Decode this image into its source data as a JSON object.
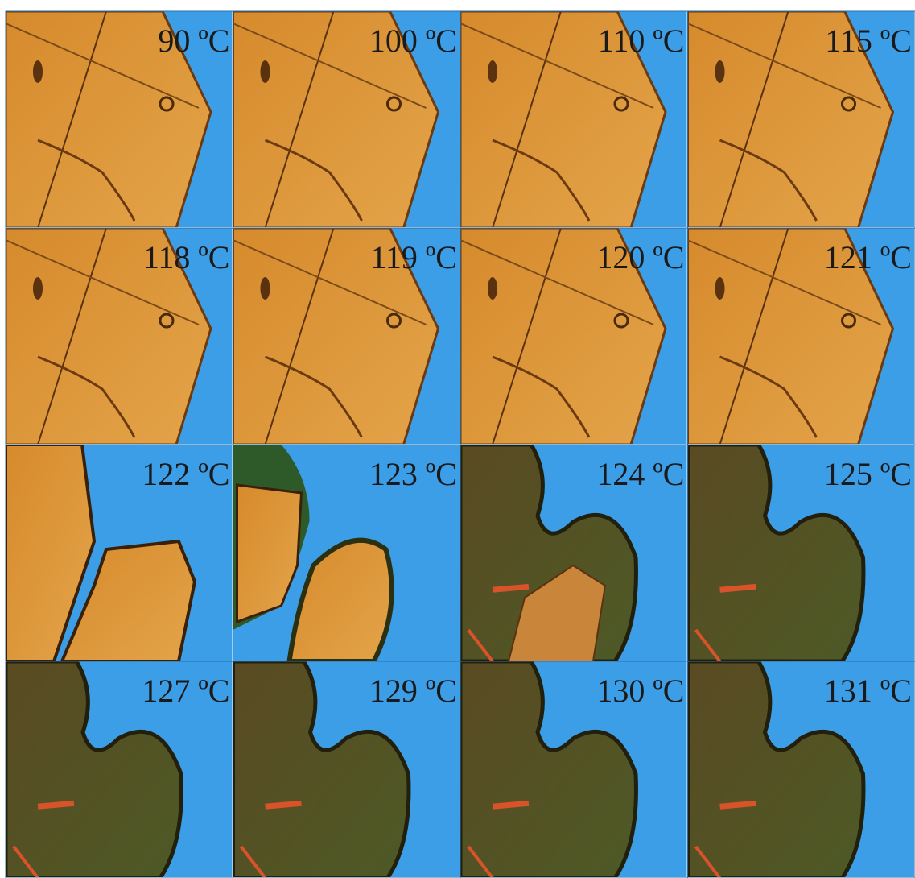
{
  "panels": [
    {
      "label": "90 ºC"
    },
    {
      "label": "100 ºC"
    },
    {
      "label": "110 ºC"
    },
    {
      "label": "115 ºC"
    },
    {
      "label": "118 ºC"
    },
    {
      "label": "119 ºC"
    },
    {
      "label": "120 ºC"
    },
    {
      "label": "121 ºC"
    },
    {
      "label": "122 ºC"
    },
    {
      "label": "123 ºC"
    },
    {
      "label": "124 ºC"
    },
    {
      "label": "125 ºC"
    },
    {
      "label": "127 ºC"
    },
    {
      "label": "129 ºC"
    },
    {
      "label": "130 ºC"
    },
    {
      "label": "131 ºC"
    }
  ]
}
